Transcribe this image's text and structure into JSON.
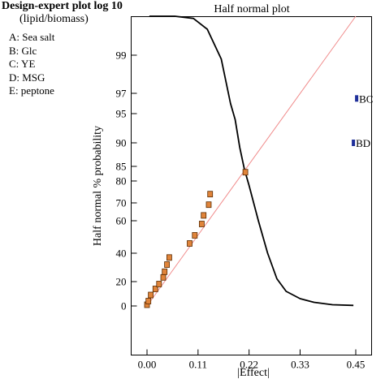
{
  "legend": {
    "title": "Design-expert plot log 10",
    "subtitle": "(lipid/biomass)",
    "factors": [
      "A: Sea salt",
      "B: Glc",
      "C: YE",
      "D: MSG",
      "E: peptone"
    ]
  },
  "chart_data": {
    "type": "scatter",
    "title": "Half normal plot",
    "xlabel": "|Effect|",
    "ylabel": "Half normal % probability",
    "xlim": [
      -0.02,
      0.46
    ],
    "x_ticks": [
      0.0,
      0.11,
      0.22,
      0.33,
      0.45
    ],
    "x_tick_labels": [
      "0.00",
      "0.11",
      "0.22",
      "0.33",
      "0.45"
    ],
    "y_ticks": [
      0,
      20,
      40,
      60,
      70,
      80,
      85,
      90,
      95,
      97,
      99
    ],
    "y_tick_labels": [
      "0",
      "20",
      "40",
      "60",
      "70",
      "80",
      "85",
      "90",
      "95",
      "97",
      "99"
    ],
    "y_scale": "half-normal probability",
    "grid": false,
    "colors": {
      "point_fill": "#e0843a",
      "point_stroke": "#5a2a00",
      "significant_point": "#1f2f9a",
      "fit_line": "#f08a8a",
      "curve": "#000000"
    },
    "points": [
      {
        "x": 0.0,
        "y": 1
      },
      {
        "x": 0.003,
        "y": 4
      },
      {
        "x": 0.008,
        "y": 9
      },
      {
        "x": 0.018,
        "y": 14
      },
      {
        "x": 0.026,
        "y": 18
      },
      {
        "x": 0.035,
        "y": 23
      },
      {
        "x": 0.038,
        "y": 27
      },
      {
        "x": 0.043,
        "y": 32
      },
      {
        "x": 0.048,
        "y": 37
      },
      {
        "x": 0.092,
        "y": 46
      },
      {
        "x": 0.103,
        "y": 51
      },
      {
        "x": 0.118,
        "y": 58
      },
      {
        "x": 0.122,
        "y": 63
      },
      {
        "x": 0.133,
        "y": 69
      },
      {
        "x": 0.136,
        "y": 74
      },
      {
        "x": 0.212,
        "y": 83
      }
    ],
    "labeled_points": [
      {
        "label": "BC",
        "x": 0.452,
        "y": 96.5
      },
      {
        "label": "BD",
        "x": 0.445,
        "y": 90
      }
    ],
    "fit_line": {
      "from": {
        "x": 0.0,
        "y": 0
      },
      "to": {
        "x": 0.45,
        "y": 99.9
      }
    },
    "curve": [
      {
        "x": 0.005,
        "y": 99.9
      },
      {
        "x": 0.06,
        "y": 99.9
      },
      {
        "x": 0.1,
        "y": 99.85
      },
      {
        "x": 0.13,
        "y": 99.6
      },
      {
        "x": 0.16,
        "y": 98.8
      },
      {
        "x": 0.18,
        "y": 96
      },
      {
        "x": 0.19,
        "y": 94
      },
      {
        "x": 0.2,
        "y": 89
      },
      {
        "x": 0.21,
        "y": 84
      },
      {
        "x": 0.22,
        "y": 78
      },
      {
        "x": 0.24,
        "y": 60
      },
      {
        "x": 0.26,
        "y": 40
      },
      {
        "x": 0.28,
        "y": 22
      },
      {
        "x": 0.3,
        "y": 12
      },
      {
        "x": 0.33,
        "y": 6
      },
      {
        "x": 0.36,
        "y": 3
      },
      {
        "x": 0.4,
        "y": 1
      },
      {
        "x": 0.445,
        "y": 0.5
      }
    ]
  }
}
